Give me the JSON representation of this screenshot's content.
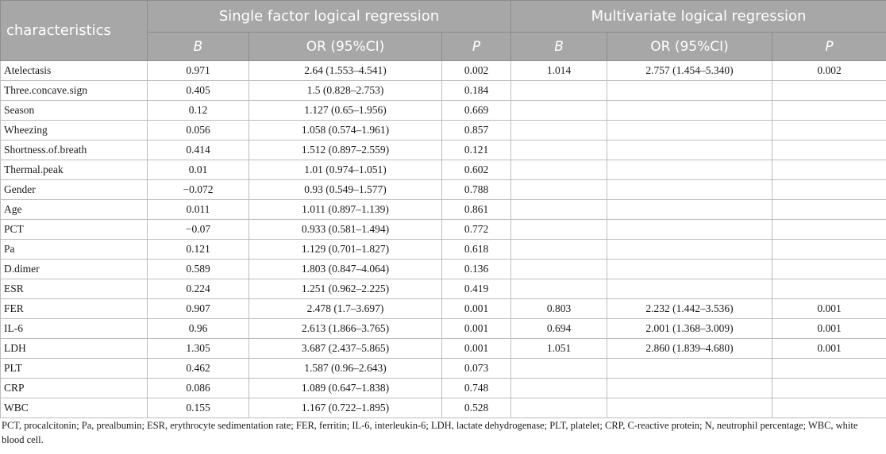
{
  "header": {
    "characteristics": "characteristics",
    "group_single": "Single factor logical regression",
    "group_multi": "Multivariate logical regression",
    "col_b": "B",
    "col_or": "OR (95%CI)",
    "col_p": "P"
  },
  "rows": [
    {
      "name": "Atelectasis",
      "b1": "0.971",
      "or1": "2.64 (1.553–4.541)",
      "p1": "0.002",
      "b2": "1.014",
      "or2": "2.757 (1.454–5.340)",
      "p2": "0.002"
    },
    {
      "name": "Three.concave.sign",
      "b1": "0.405",
      "or1": "1.5 (0.828–2.753)",
      "p1": "0.184",
      "b2": "",
      "or2": "",
      "p2": ""
    },
    {
      "name": "Season",
      "b1": "0.12",
      "or1": "1.127 (0.65–1.956)",
      "p1": "0.669",
      "b2": "",
      "or2": "",
      "p2": ""
    },
    {
      "name": "Wheezing",
      "b1": "0.056",
      "or1": "1.058 (0.574–1.961)",
      "p1": "0.857",
      "b2": "",
      "or2": "",
      "p2": ""
    },
    {
      "name": "Shortness.of.breath",
      "b1": "0.414",
      "or1": "1.512 (0.897–2.559)",
      "p1": "0.121",
      "b2": "",
      "or2": "",
      "p2": ""
    },
    {
      "name": "Thermal.peak",
      "b1": "0.01",
      "or1": "1.01 (0.974–1.051)",
      "p1": "0.602",
      "b2": "",
      "or2": "",
      "p2": ""
    },
    {
      "name": "Gender",
      "b1": "−0.072",
      "or1": "0.93 (0.549–1.577)",
      "p1": "0.788",
      "b2": "",
      "or2": "",
      "p2": ""
    },
    {
      "name": "Age",
      "b1": "0.011",
      "or1": "1.011 (0.897–1.139)",
      "p1": "0.861",
      "b2": "",
      "or2": "",
      "p2": ""
    },
    {
      "name": "PCT",
      "b1": "−0.07",
      "or1": "0.933 (0.581–1.494)",
      "p1": "0.772",
      "b2": "",
      "or2": "",
      "p2": ""
    },
    {
      "name": "Pa",
      "b1": "0.121",
      "or1": "1.129 (0.701–1.827)",
      "p1": "0.618",
      "b2": "",
      "or2": "",
      "p2": ""
    },
    {
      "name": "D.dimer",
      "b1": "0.589",
      "or1": "1.803 (0.847–4.064)",
      "p1": "0.136",
      "b2": "",
      "or2": "",
      "p2": ""
    },
    {
      "name": "ESR",
      "b1": "0.224",
      "or1": "1.251 (0.962–2.225)",
      "p1": "0.419",
      "b2": "",
      "or2": "",
      "p2": ""
    },
    {
      "name": "FER",
      "b1": "0.907",
      "or1": "2.478 (1.7–3.697)",
      "p1": "0.001",
      "b2": "0.803",
      "or2": "2.232 (1.442–3.536)",
      "p2": "0.001"
    },
    {
      "name": "IL-6",
      "b1": "0.96",
      "or1": "2.613 (1.866–3.765)",
      "p1": "0.001",
      "b2": "0.694",
      "or2": "2.001 (1.368–3.009)",
      "p2": "0.001"
    },
    {
      "name": "LDH",
      "b1": "1.305",
      "or1": "3.687 (2.437–5.865)",
      "p1": "0.001",
      "b2": "1.051",
      "or2": "2.860 (1.839–4.680)",
      "p2": "0.001"
    },
    {
      "name": "PLT",
      "b1": "0.462",
      "or1": "1.587 (0.96–2.643)",
      "p1": "0.073",
      "b2": "",
      "or2": "",
      "p2": ""
    },
    {
      "name": "CRP",
      "b1": "0.086",
      "or1": "1.089 (0.647–1.838)",
      "p1": "0.748",
      "b2": "",
      "or2": "",
      "p2": ""
    },
    {
      "name": "WBC",
      "b1": "0.155",
      "or1": "1.167 (0.722–1.895)",
      "p1": "0.528",
      "b2": "",
      "or2": "",
      "p2": ""
    }
  ],
  "footnote": "PCT, procalcitonin; Pa, prealbumin; ESR, erythrocyte sedimentation rate; FER, ferritin; IL-6, interleukin-6; LDH, lactate dehydrogenase; PLT, platelet; CRP, C-reactive protein; N, neutrophil percentage; WBC, white blood cell."
}
